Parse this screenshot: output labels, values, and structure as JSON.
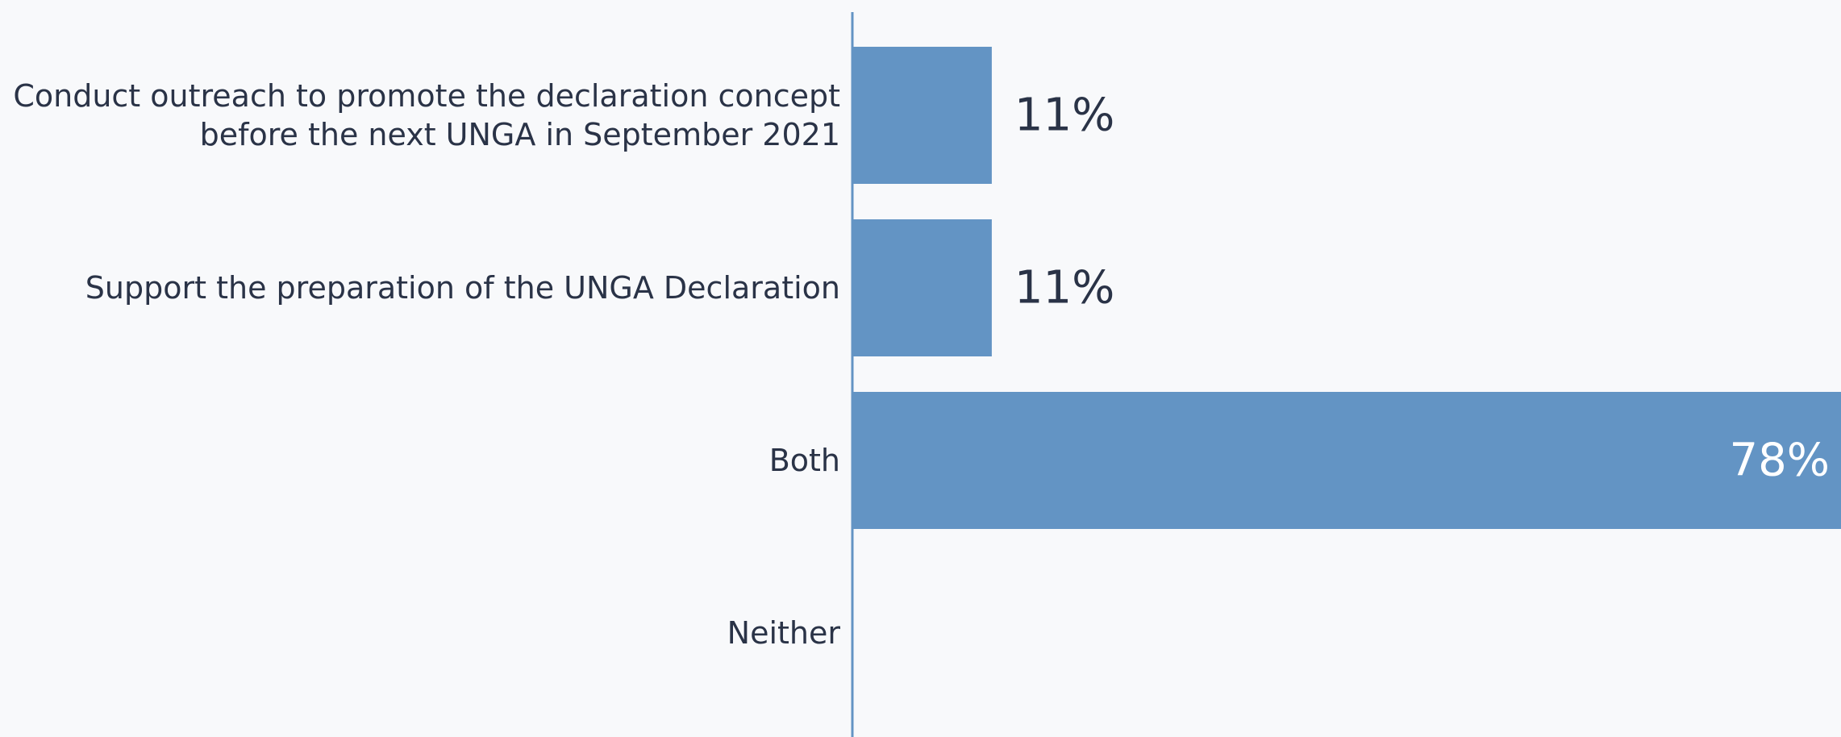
{
  "chart_data": {
    "type": "hbar",
    "categories": [
      "Conduct outreach to promote the declaration concept before the next UNGA in September 2021",
      "Support the preparation of the UNGA Declaration",
      "Both",
      "Neither"
    ],
    "values": [
      11,
      11,
      78,
      0
    ],
    "value_labels": [
      "11%",
      "11%",
      "78%",
      null
    ],
    "color": "#6394c4",
    "xlim": [
      0,
      78
    ]
  }
}
